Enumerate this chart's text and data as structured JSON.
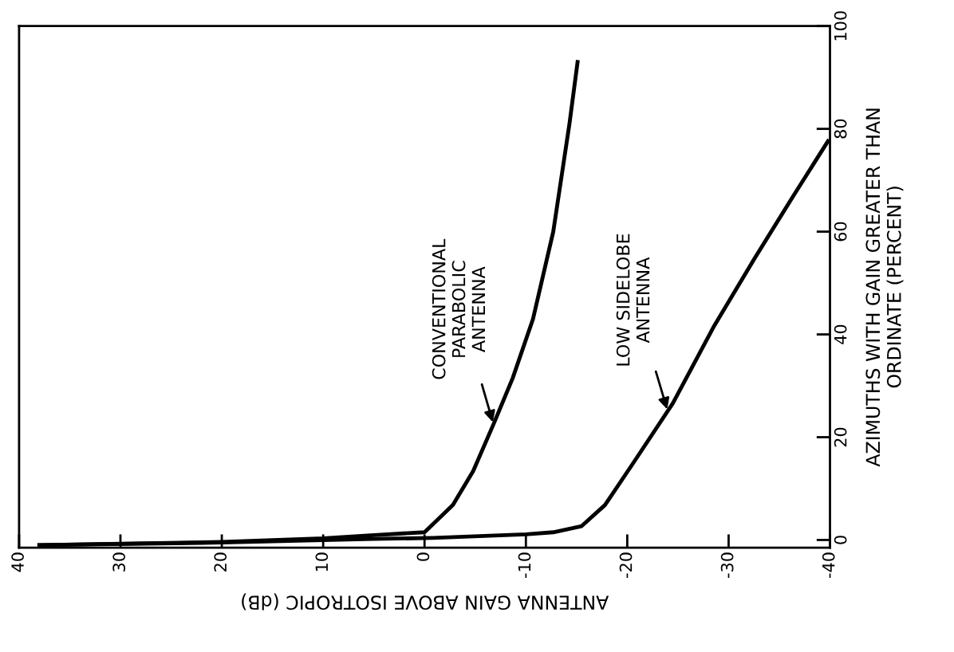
{
  "chart_data": {
    "type": "line",
    "xlabel": "ANTENNA GAIN ABOVE ISOTROPIC (dB)",
    "ylabel": "AZIMUTHS WITH GAIN GREATER THAN\nORDINATE (PERCENT)",
    "series": [
      {
        "color": "#000000",
        "x": [
          38,
          20,
          10,
          5.3,
          0,
          -0.8,
          -2.8,
          -4.8,
          -6.8,
          -8.7,
          -10.7,
          -12.7,
          -14.3,
          -15.1
        ],
        "values": [
          -1,
          -0.4,
          0.3,
          0.9,
          1.5,
          3,
          6.8,
          13.4,
          22.5,
          31.5,
          43,
          60,
          81,
          93
        ]
      },
      {
        "color": "#000000",
        "x": [
          38,
          20,
          5,
          -0.8,
          -10,
          -12.7,
          -15.5,
          -17.8,
          -20.6,
          -24.5,
          -28.5,
          -32.5,
          -36.4,
          -39.8
        ],
        "values": [
          -1,
          -0.5,
          0.2,
          0.4,
          1.1,
          1.5,
          2.7,
          6.8,
          15,
          26.6,
          41.4,
          54.6,
          67,
          77.6
        ]
      }
    ],
    "annotations": [
      {
        "text": "CONVENTIONAL\nPARABOLIC\nANTENNA",
        "x": -6.8,
        "y": 22.5
      },
      {
        "text": "LOW SIDELOBE\nANTENNA",
        "x": -24,
        "y": 25
      }
    ],
    "xlim": [
      40,
      -40
    ],
    "xticks": [
      40,
      30,
      20,
      10,
      0,
      -10,
      -20,
      -30,
      -40
    ],
    "ylim": [
      -1.5,
      100
    ],
    "yticks": [
      0,
      20,
      40,
      60,
      80,
      100
    ],
    "grid": false,
    "legend": false,
    "marker": "none",
    "line_style": "solid"
  }
}
